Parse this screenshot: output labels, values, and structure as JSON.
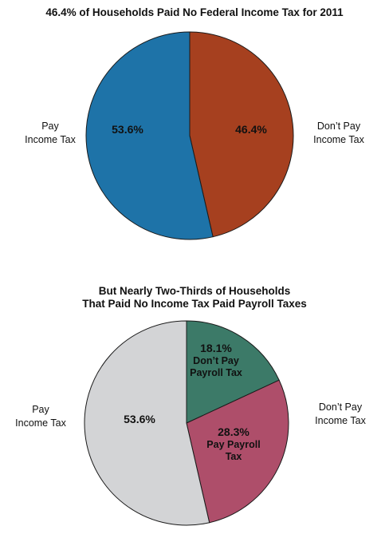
{
  "chart_data": [
    {
      "type": "pie",
      "title": "46.4% of Households Paid No Federal Income Tax for 2011",
      "side_labels": {
        "left": [
          "Pay",
          "Income Tax"
        ],
        "right": [
          "Don’t Pay",
          "Income Tax"
        ]
      },
      "slices": [
        {
          "label": "Don’t Pay Income Tax",
          "value": 46.4,
          "inner_text": [
            "46.4%"
          ],
          "color": "#a6401f"
        },
        {
          "label": "Pay Income Tax",
          "value": 53.6,
          "inner_text": [
            "53.6%"
          ],
          "color": "#1e73a8"
        }
      ]
    },
    {
      "type": "pie",
      "title_lines": [
        "But Nearly Two-Thirds of Households",
        "That Paid No Income Tax Paid Payroll Taxes"
      ],
      "side_labels": {
        "left": [
          "Pay",
          "Income Tax"
        ],
        "right": [
          "Don’t Pay",
          "Income Tax"
        ]
      },
      "slices": [
        {
          "label": "Don’t Pay Payroll Tax",
          "value": 18.1,
          "inner_text": [
            "18.1%",
            "Don’t Pay",
            "Payroll Tax"
          ],
          "color": "#3c7a68"
        },
        {
          "label": "Pay Payroll Tax",
          "value": 28.3,
          "inner_text": [
            "28.3%",
            "Pay Payroll",
            "Tax"
          ],
          "color": "#ae4e6a"
        },
        {
          "label": "Pay Income Tax",
          "value": 53.6,
          "inner_text": [
            "53.6%"
          ],
          "color": "#d3d4d6"
        }
      ]
    }
  ]
}
